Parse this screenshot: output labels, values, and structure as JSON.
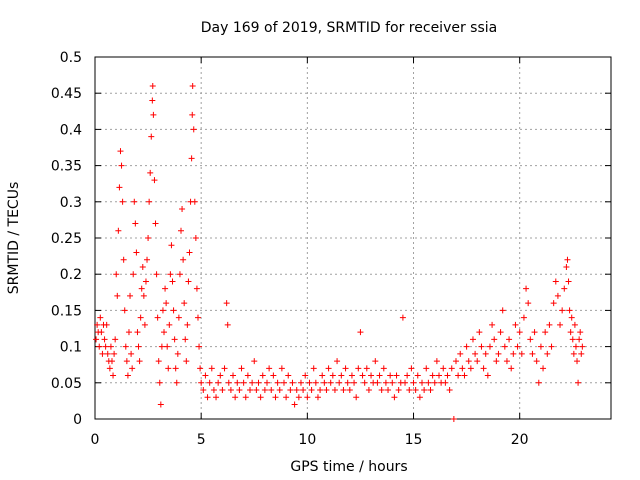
{
  "chart_data": {
    "type": "scatter",
    "title": "Day 169 of 2019, SRMTID for receiver ssia",
    "xlabel": "GPS time / hours",
    "ylabel": "SRMTID / TECUs",
    "xlim": [
      0,
      24.3
    ],
    "ylim": [
      0,
      0.5
    ],
    "x_ticks": [
      0,
      5,
      10,
      15,
      20
    ],
    "x_tick_labels": [
      "0",
      "5",
      "10",
      "15",
      "20"
    ],
    "y_ticks": [
      0,
      0.05,
      0.1,
      0.15,
      0.2,
      0.25,
      0.3,
      0.35,
      0.4,
      0.45,
      0.5
    ],
    "y_tick_labels": [
      "0",
      "0.05",
      "0.1",
      "0.15",
      "0.2",
      "0.25",
      "0.3",
      "0.35",
      "0.4",
      "0.45",
      "0.5"
    ],
    "grid": true,
    "marker": "+",
    "color": "#ff0000",
    "series": [
      {
        "name": "SRMTID",
        "points": [
          [
            0.05,
            0.11
          ],
          [
            0.1,
            0.13
          ],
          [
            0.15,
            0.12
          ],
          [
            0.2,
            0.1
          ],
          [
            0.25,
            0.14
          ],
          [
            0.3,
            0.12
          ],
          [
            0.35,
            0.09
          ],
          [
            0.4,
            0.13
          ],
          [
            0.45,
            0.11
          ],
          [
            0.5,
            0.1
          ],
          [
            0.55,
            0.13
          ],
          [
            0.6,
            0.09
          ],
          [
            0.65,
            0.08
          ],
          [
            0.7,
            0.07
          ],
          [
            0.75,
            0.1
          ],
          [
            0.8,
            0.08
          ],
          [
            0.85,
            0.06
          ],
          [
            0.9,
            0.09
          ],
          [
            0.95,
            0.11
          ],
          [
            1.0,
            0.2
          ],
          [
            1.05,
            0.17
          ],
          [
            1.1,
            0.26
          ],
          [
            1.15,
            0.32
          ],
          [
            1.2,
            0.37
          ],
          [
            1.25,
            0.35
          ],
          [
            1.3,
            0.3
          ],
          [
            1.35,
            0.22
          ],
          [
            1.4,
            0.15
          ],
          [
            1.45,
            0.1
          ],
          [
            1.5,
            0.08
          ],
          [
            1.55,
            0.06
          ],
          [
            1.6,
            0.12
          ],
          [
            1.65,
            0.17
          ],
          [
            1.7,
            0.09
          ],
          [
            1.75,
            0.07
          ],
          [
            1.8,
            0.2
          ],
          [
            1.85,
            0.3
          ],
          [
            1.9,
            0.27
          ],
          [
            1.95,
            0.23
          ],
          [
            2.0,
            0.12
          ],
          [
            2.05,
            0.1
          ],
          [
            2.1,
            0.08
          ],
          [
            2.15,
            0.14
          ],
          [
            2.2,
            0.18
          ],
          [
            2.25,
            0.21
          ],
          [
            2.3,
            0.17
          ],
          [
            2.35,
            0.13
          ],
          [
            2.4,
            0.19
          ],
          [
            2.45,
            0.22
          ],
          [
            2.5,
            0.25
          ],
          [
            2.55,
            0.3
          ],
          [
            2.6,
            0.34
          ],
          [
            2.65,
            0.39
          ],
          [
            2.7,
            0.44
          ],
          [
            2.72,
            0.46
          ],
          [
            2.75,
            0.42
          ],
          [
            2.8,
            0.33
          ],
          [
            2.85,
            0.27
          ],
          [
            2.9,
            0.2
          ],
          [
            2.95,
            0.14
          ],
          [
            3.0,
            0.08
          ],
          [
            3.05,
            0.05
          ],
          [
            3.1,
            0.02
          ],
          [
            3.15,
            0.1
          ],
          [
            3.2,
            0.15
          ],
          [
            3.25,
            0.12
          ],
          [
            3.3,
            0.18
          ],
          [
            3.35,
            0.16
          ],
          [
            3.4,
            0.1
          ],
          [
            3.45,
            0.07
          ],
          [
            3.5,
            0.13
          ],
          [
            3.55,
            0.2
          ],
          [
            3.6,
            0.24
          ],
          [
            3.65,
            0.19
          ],
          [
            3.7,
            0.15
          ],
          [
            3.75,
            0.11
          ],
          [
            3.8,
            0.07
          ],
          [
            3.85,
            0.05
          ],
          [
            3.9,
            0.09
          ],
          [
            3.95,
            0.14
          ],
          [
            4.0,
            0.2
          ],
          [
            4.05,
            0.26
          ],
          [
            4.1,
            0.29
          ],
          [
            4.15,
            0.22
          ],
          [
            4.2,
            0.16
          ],
          [
            4.25,
            0.11
          ],
          [
            4.3,
            0.08
          ],
          [
            4.35,
            0.13
          ],
          [
            4.4,
            0.19
          ],
          [
            4.45,
            0.23
          ],
          [
            4.5,
            0.3
          ],
          [
            4.55,
            0.36
          ],
          [
            4.58,
            0.42
          ],
          [
            4.6,
            0.46
          ],
          [
            4.65,
            0.4
          ],
          [
            4.7,
            0.3
          ],
          [
            4.75,
            0.25
          ],
          [
            4.8,
            0.18
          ],
          [
            4.85,
            0.14
          ],
          [
            4.9,
            0.1
          ],
          [
            4.95,
            0.07
          ],
          [
            5.0,
            0.05
          ],
          [
            5.1,
            0.04
          ],
          [
            5.2,
            0.06
          ],
          [
            5.3,
            0.03
          ],
          [
            5.4,
            0.05
          ],
          [
            5.5,
            0.07
          ],
          [
            5.6,
            0.04
          ],
          [
            5.7,
            0.03
          ],
          [
            5.8,
            0.05
          ],
          [
            5.9,
            0.06
          ],
          [
            6.0,
            0.04
          ],
          [
            6.1,
            0.07
          ],
          [
            6.2,
            0.16
          ],
          [
            6.25,
            0.13
          ],
          [
            6.3,
            0.05
          ],
          [
            6.4,
            0.04
          ],
          [
            6.5,
            0.06
          ],
          [
            6.6,
            0.03
          ],
          [
            6.7,
            0.05
          ],
          [
            6.8,
            0.04
          ],
          [
            6.9,
            0.07
          ],
          [
            7.0,
            0.05
          ],
          [
            7.1,
            0.03
          ],
          [
            7.2,
            0.06
          ],
          [
            7.3,
            0.04
          ],
          [
            7.4,
            0.05
          ],
          [
            7.5,
            0.08
          ],
          [
            7.6,
            0.04
          ],
          [
            7.7,
            0.05
          ],
          [
            7.8,
            0.03
          ],
          [
            7.9,
            0.06
          ],
          [
            8.0,
            0.04
          ],
          [
            8.1,
            0.05
          ],
          [
            8.2,
            0.07
          ],
          [
            8.3,
            0.04
          ],
          [
            8.4,
            0.06
          ],
          [
            8.5,
            0.03
          ],
          [
            8.6,
            0.05
          ],
          [
            8.7,
            0.04
          ],
          [
            8.8,
            0.07
          ],
          [
            8.9,
            0.05
          ],
          [
            9.0,
            0.03
          ],
          [
            9.1,
            0.06
          ],
          [
            9.2,
            0.04
          ],
          [
            9.3,
            0.05
          ],
          [
            9.4,
            0.02
          ],
          [
            9.5,
            0.04
          ],
          [
            9.6,
            0.03
          ],
          [
            9.7,
            0.05
          ],
          [
            9.8,
            0.04
          ],
          [
            9.9,
            0.06
          ],
          [
            10.0,
            0.03
          ],
          [
            10.1,
            0.05
          ],
          [
            10.2,
            0.04
          ],
          [
            10.3,
            0.07
          ],
          [
            10.4,
            0.05
          ],
          [
            10.5,
            0.03
          ],
          [
            10.6,
            0.04
          ],
          [
            10.7,
            0.06
          ],
          [
            10.8,
            0.05
          ],
          [
            10.9,
            0.04
          ],
          [
            11.0,
            0.07
          ],
          [
            11.1,
            0.05
          ],
          [
            11.2,
            0.06
          ],
          [
            11.3,
            0.04
          ],
          [
            11.4,
            0.08
          ],
          [
            11.5,
            0.05
          ],
          [
            11.6,
            0.06
          ],
          [
            11.7,
            0.04
          ],
          [
            11.8,
            0.07
          ],
          [
            11.9,
            0.05
          ],
          [
            12.0,
            0.04
          ],
          [
            12.1,
            0.06
          ],
          [
            12.2,
            0.05
          ],
          [
            12.3,
            0.03
          ],
          [
            12.4,
            0.07
          ],
          [
            12.5,
            0.12
          ],
          [
            12.6,
            0.06
          ],
          [
            12.7,
            0.05
          ],
          [
            12.8,
            0.07
          ],
          [
            12.9,
            0.04
          ],
          [
            13.0,
            0.06
          ],
          [
            13.1,
            0.05
          ],
          [
            13.2,
            0.08
          ],
          [
            13.3,
            0.05
          ],
          [
            13.4,
            0.06
          ],
          [
            13.5,
            0.04
          ],
          [
            13.6,
            0.07
          ],
          [
            13.7,
            0.05
          ],
          [
            13.8,
            0.04
          ],
          [
            13.9,
            0.06
          ],
          [
            14.0,
            0.05
          ],
          [
            14.1,
            0.03
          ],
          [
            14.2,
            0.06
          ],
          [
            14.3,
            0.04
          ],
          [
            14.4,
            0.05
          ],
          [
            14.5,
            0.14
          ],
          [
            14.6,
            0.05
          ],
          [
            14.7,
            0.06
          ],
          [
            14.8,
            0.04
          ],
          [
            14.9,
            0.07
          ],
          [
            15.0,
            0.05
          ],
          [
            15.1,
            0.04
          ],
          [
            15.2,
            0.06
          ],
          [
            15.3,
            0.03
          ],
          [
            15.4,
            0.05
          ],
          [
            15.5,
            0.04
          ],
          [
            15.6,
            0.07
          ],
          [
            15.7,
            0.05
          ],
          [
            15.8,
            0.04
          ],
          [
            15.9,
            0.06
          ],
          [
            16.0,
            0.05
          ],
          [
            16.1,
            0.08
          ],
          [
            16.2,
            0.06
          ],
          [
            16.3,
            0.05
          ],
          [
            16.4,
            0.07
          ],
          [
            16.5,
            0.05
          ],
          [
            16.6,
            0.06
          ],
          [
            16.7,
            0.04
          ],
          [
            16.8,
            0.07
          ],
          [
            16.9,
            0.0
          ],
          [
            17.0,
            0.08
          ],
          [
            17.1,
            0.06
          ],
          [
            17.2,
            0.09
          ],
          [
            17.3,
            0.07
          ],
          [
            17.4,
            0.06
          ],
          [
            17.5,
            0.1
          ],
          [
            17.6,
            0.08
          ],
          [
            17.7,
            0.07
          ],
          [
            17.8,
            0.11
          ],
          [
            17.9,
            0.09
          ],
          [
            18.0,
            0.08
          ],
          [
            18.1,
            0.12
          ],
          [
            18.2,
            0.1
          ],
          [
            18.3,
            0.07
          ],
          [
            18.4,
            0.09
          ],
          [
            18.5,
            0.06
          ],
          [
            18.6,
            0.1
          ],
          [
            18.7,
            0.13
          ],
          [
            18.8,
            0.11
          ],
          [
            18.9,
            0.08
          ],
          [
            19.0,
            0.09
          ],
          [
            19.1,
            0.12
          ],
          [
            19.2,
            0.15
          ],
          [
            19.3,
            0.1
          ],
          [
            19.4,
            0.08
          ],
          [
            19.5,
            0.11
          ],
          [
            19.6,
            0.07
          ],
          [
            19.7,
            0.09
          ],
          [
            19.8,
            0.13
          ],
          [
            19.9,
            0.1
          ],
          [
            20.0,
            0.12
          ],
          [
            20.1,
            0.09
          ],
          [
            20.2,
            0.14
          ],
          [
            20.3,
            0.18
          ],
          [
            20.4,
            0.16
          ],
          [
            20.5,
            0.11
          ],
          [
            20.6,
            0.09
          ],
          [
            20.7,
            0.12
          ],
          [
            20.8,
            0.08
          ],
          [
            20.9,
            0.05
          ],
          [
            21.0,
            0.1
          ],
          [
            21.1,
            0.07
          ],
          [
            21.2,
            0.12
          ],
          [
            21.3,
            0.09
          ],
          [
            21.4,
            0.13
          ],
          [
            21.5,
            0.1
          ],
          [
            21.6,
            0.16
          ],
          [
            21.7,
            0.19
          ],
          [
            21.8,
            0.17
          ],
          [
            21.9,
            0.13
          ],
          [
            22.0,
            0.15
          ],
          [
            22.1,
            0.18
          ],
          [
            22.2,
            0.21
          ],
          [
            22.25,
            0.22
          ],
          [
            22.3,
            0.19
          ],
          [
            22.35,
            0.15
          ],
          [
            22.4,
            0.12
          ],
          [
            22.45,
            0.14
          ],
          [
            22.5,
            0.11
          ],
          [
            22.55,
            0.09
          ],
          [
            22.6,
            0.13
          ],
          [
            22.65,
            0.1
          ],
          [
            22.7,
            0.08
          ],
          [
            22.75,
            0.05
          ],
          [
            22.8,
            0.11
          ],
          [
            22.85,
            0.12
          ],
          [
            22.9,
            0.09
          ],
          [
            22.95,
            0.1
          ]
        ]
      }
    ]
  }
}
